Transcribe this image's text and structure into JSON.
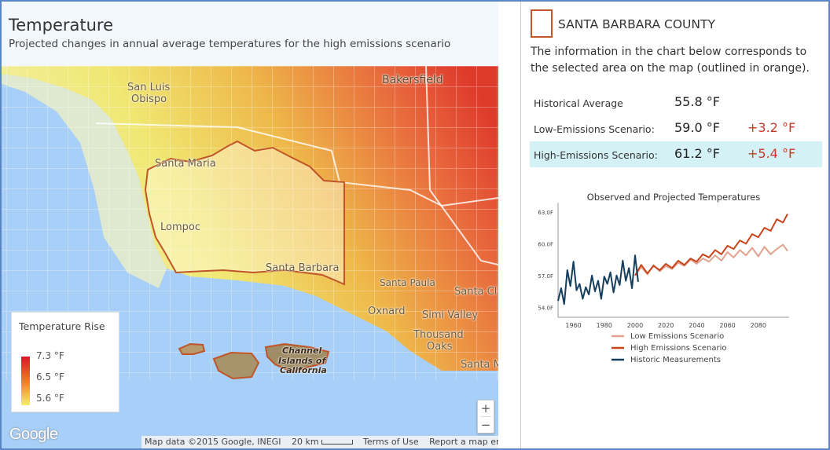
{
  "map": {
    "title": "Temperature",
    "subtitle": "Projected changes in annual average temperatures for the high emissions scenario",
    "places": {
      "san_luis_obispo_1": "San Luis",
      "san_luis_obispo_2": "Obispo",
      "bakersfield": "Bakersfield",
      "santa_maria": "Santa Maria",
      "lompoc": "Lompoc",
      "santa_barbara": "Santa Barbara",
      "santa_paula": "Santa Paula",
      "santa_clarita": "Santa Cl",
      "oxnard": "Oxnard",
      "simi_valley": "Simi Valley",
      "thousand_oaks_1": "Thousand",
      "thousand_oaks_2": "Oaks",
      "santa_monica": "Santa M",
      "channel_islands_1": "Channel",
      "channel_islands_2": "Islands of",
      "channel_islands_3": "California"
    },
    "legend": {
      "title": "Temperature Rise",
      "max": "7.3 °F",
      "mid": "6.5 °F",
      "min": "5.6 °F",
      "gradient_colors": [
        "#e0132b",
        "#ee7a27",
        "#f6ee6a"
      ]
    },
    "zoom_in": "+",
    "zoom_out": "−",
    "google_logo": "Google",
    "attribution": {
      "map_data": "Map data ©2015 Google, INEGI",
      "scale": "20 km",
      "terms": "Terms of Use",
      "report": "Report a map error"
    }
  },
  "info": {
    "county": "SANTA BARBARA COUNTY",
    "outline_color": "#c0552a",
    "description": "The information in the chart below corresponds to the selected area on the map (outlined in orange).",
    "rows": [
      {
        "label": "Historical Average",
        "value": "55.8 °F",
        "diff": ""
      },
      {
        "label": "Low-Emissions Scenario:",
        "value": "59.0 °F",
        "diff": "+3.2 °F"
      },
      {
        "label": "High-Emissions Scenario:",
        "value": "61.2 °F",
        "diff": "+5.4 °F"
      }
    ],
    "highlight_color": "#d4f2f6"
  },
  "chart_data": {
    "type": "line",
    "title": "Observed and Projected Temperatures",
    "xlabel": "",
    "ylabel": "",
    "xlim": [
      1950,
      2100
    ],
    "ylim": [
      53.5,
      63.5
    ],
    "xticks": [
      1960,
      1980,
      2000,
      2020,
      2040,
      2060,
      2080
    ],
    "yticks": [
      54.0,
      57.0,
      60.0,
      63.0
    ],
    "xtick_labels": [
      "1960",
      "1980",
      "2000",
      "2020",
      "2040",
      "2060",
      "2080"
    ],
    "ytick_labels": [
      "54.0F",
      "57.0F",
      "60.0F",
      "63.0F"
    ],
    "legend_position": "bottom",
    "series": [
      {
        "name": "Low Emissions Scenario",
        "color": "#e2a18e",
        "x": [
          2000,
          2004,
          2008,
          2012,
          2016,
          2020,
          2024,
          2028,
          2032,
          2036,
          2040,
          2044,
          2048,
          2052,
          2056,
          2060,
          2064,
          2068,
          2072,
          2076,
          2080,
          2084,
          2088,
          2092,
          2096,
          2099
        ],
        "values": [
          57.0,
          57.8,
          57.1,
          58.0,
          57.4,
          57.9,
          57.6,
          58.2,
          57.9,
          58.5,
          58.1,
          58.6,
          58.3,
          58.9,
          58.4,
          59.2,
          58.7,
          59.4,
          58.9,
          59.6,
          58.8,
          59.7,
          59.0,
          59.5,
          59.9,
          59.3
        ]
      },
      {
        "name": "High Emissions Scenario",
        "color": "#c8451c",
        "x": [
          2000,
          2004,
          2008,
          2012,
          2016,
          2020,
          2024,
          2028,
          2032,
          2036,
          2040,
          2044,
          2048,
          2052,
          2056,
          2060,
          2064,
          2068,
          2072,
          2076,
          2080,
          2084,
          2088,
          2092,
          2096,
          2099
        ],
        "values": [
          57.0,
          58.0,
          57.2,
          57.9,
          57.5,
          58.1,
          57.7,
          58.4,
          58.0,
          58.6,
          58.3,
          59.0,
          58.7,
          59.4,
          59.0,
          59.8,
          59.5,
          60.3,
          60.0,
          60.9,
          60.6,
          61.5,
          61.2,
          62.3,
          62.0,
          62.8
        ]
      },
      {
        "name": "Historic Measurements",
        "color": "#143f5e",
        "x": [
          1950,
          1952,
          1954,
          1956,
          1958,
          1960,
          1962,
          1964,
          1966,
          1968,
          1970,
          1972,
          1974,
          1976,
          1978,
          1980,
          1982,
          1984,
          1986,
          1988,
          1990,
          1992,
          1994,
          1996,
          1998,
          2000,
          2002
        ],
        "values": [
          54.6,
          55.8,
          54.3,
          57.5,
          56.0,
          58.3,
          55.6,
          56.2,
          54.8,
          55.9,
          55.2,
          57.0,
          55.5,
          56.5,
          54.8,
          56.9,
          56.2,
          57.3,
          55.4,
          57.0,
          56.1,
          58.4,
          56.5,
          57.7,
          55.8,
          58.9,
          56.4
        ]
      }
    ]
  }
}
